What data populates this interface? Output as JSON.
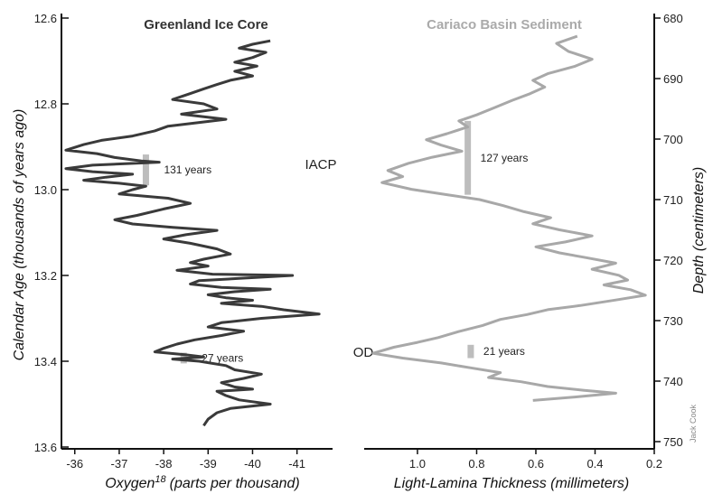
{
  "chart_data": [
    {
      "type": "line",
      "title": "Greenland Ice Core",
      "xlabel": "Oxygen",
      "xlabel_sup": "18",
      "xlabel_units": "(parts per thousand)",
      "ylabel": "Calendar Age (thousands of years ago)",
      "xlim": [
        -35.7,
        -41.8
      ],
      "ylim": [
        12.6,
        13.6
      ],
      "x_ticks": [
        "-36",
        "-37",
        "-38",
        "-39",
        "-40",
        "-41"
      ],
      "x_tick_values": [
        -36,
        -37,
        -38,
        -39,
        -40,
        -41
      ],
      "y_ticks": [
        "12.6",
        "12.8",
        "13.0",
        "13.2",
        "13.4",
        "13.6"
      ],
      "y_tick_values": [
        12.6,
        12.8,
        13.0,
        13.2,
        13.4,
        13.6
      ],
      "line_color": "#3a3a3a",
      "series": [
        {
          "points": [
            [
              -40.4,
              12.653
            ],
            [
              -40.0,
              12.661
            ],
            [
              -39.7,
              12.67
            ],
            [
              -40.3,
              12.68
            ],
            [
              -40.0,
              12.692
            ],
            [
              -39.6,
              12.703
            ],
            [
              -40.1,
              12.712
            ],
            [
              -39.6,
              12.724
            ],
            [
              -40.0,
              12.735
            ],
            [
              -39.5,
              12.745
            ],
            [
              -39.2,
              12.755
            ],
            [
              -38.9,
              12.765
            ],
            [
              -38.6,
              12.776
            ],
            [
              -38.2,
              12.79
            ],
            [
              -38.9,
              12.8
            ],
            [
              -39.2,
              12.812
            ],
            [
              -38.4,
              12.824
            ],
            [
              -39.4,
              12.836
            ],
            [
              -38.1,
              12.852
            ],
            [
              -37.8,
              12.863
            ],
            [
              -37.3,
              12.875
            ],
            [
              -36.6,
              12.885
            ],
            [
              -36.2,
              12.895
            ],
            [
              -35.8,
              12.908
            ],
            [
              -36.5,
              12.916
            ],
            [
              -36.9,
              12.925
            ],
            [
              -37.5,
              12.933
            ],
            [
              -37.9,
              12.936
            ],
            [
              -36.4,
              12.943
            ],
            [
              -35.8,
              12.951
            ],
            [
              -36.4,
              12.958
            ],
            [
              -37.3,
              12.964
            ],
            [
              -36.7,
              12.971
            ],
            [
              -36.2,
              12.978
            ],
            [
              -37.0,
              12.985
            ],
            [
              -37.6,
              12.992
            ],
            [
              -37.3,
              13.0
            ],
            [
              -37.0,
              13.01
            ],
            [
              -38.1,
              13.02
            ],
            [
              -38.6,
              13.032
            ],
            [
              -38.0,
              13.045
            ],
            [
              -37.4,
              13.06
            ],
            [
              -36.9,
              13.07
            ],
            [
              -37.3,
              13.08
            ],
            [
              -38.2,
              13.088
            ],
            [
              -39.2,
              13.095
            ],
            [
              -38.5,
              13.105
            ],
            [
              -38.0,
              13.115
            ],
            [
              -38.6,
              13.125
            ],
            [
              -39.2,
              13.138
            ],
            [
              -39.5,
              13.15
            ],
            [
              -38.9,
              13.162
            ],
            [
              -38.6,
              13.17
            ],
            [
              -39.0,
              13.178
            ],
            [
              -38.3,
              13.188
            ],
            [
              -39.1,
              13.197
            ],
            [
              -40.9,
              13.2
            ],
            [
              -39.7,
              13.207
            ],
            [
              -38.8,
              13.212
            ],
            [
              -38.6,
              13.22
            ],
            [
              -39.3,
              13.228
            ],
            [
              -40.4,
              13.232
            ],
            [
              -39.6,
              13.238
            ],
            [
              -39.0,
              13.245
            ],
            [
              -39.4,
              13.252
            ],
            [
              -40.0,
              13.258
            ],
            [
              -39.3,
              13.265
            ],
            [
              -40.2,
              13.272
            ],
            [
              -40.7,
              13.28
            ],
            [
              -41.5,
              13.29
            ],
            [
              -40.2,
              13.3
            ],
            [
              -39.3,
              13.31
            ],
            [
              -39.0,
              13.32
            ],
            [
              -39.8,
              13.33
            ],
            [
              -39.3,
              13.34
            ],
            [
              -38.7,
              13.35
            ],
            [
              -38.3,
              13.36
            ],
            [
              -38.0,
              13.37
            ],
            [
              -37.8,
              13.378
            ],
            [
              -38.5,
              13.385
            ],
            [
              -38.9,
              13.39
            ],
            [
              -38.2,
              13.395
            ],
            [
              -38.8,
              13.4
            ],
            [
              -39.4,
              13.41
            ],
            [
              -39.6,
              13.42
            ],
            [
              -40.2,
              13.43
            ],
            [
              -39.8,
              13.44
            ],
            [
              -39.3,
              13.45
            ],
            [
              -39.6,
              13.46
            ],
            [
              -40.0,
              13.465
            ],
            [
              -39.2,
              13.47
            ],
            [
              -39.4,
              13.48
            ],
            [
              -39.7,
              13.49
            ],
            [
              -40.4,
              13.5
            ],
            [
              -39.5,
              13.51
            ],
            [
              -39.2,
              13.52
            ],
            [
              -39.0,
              13.535
            ],
            [
              -38.9,
              13.55
            ]
          ]
        }
      ],
      "markers": [
        {
          "label": "131 years",
          "x": -37.6,
          "y_from": 12.918,
          "y_to": 12.99
        },
        {
          "label": "27 years",
          "x": -38.45,
          "y_from": 13.38,
          "y_to": 13.405
        }
      ]
    },
    {
      "type": "line",
      "title": "Cariaco Basin Sediment",
      "xlabel": "Light-Lamina Thickness (millimeters)",
      "ylabel": "Depth (centimeters)",
      "xlim": [
        1.18,
        0.2
      ],
      "ylim": [
        680,
        750
      ],
      "x_ticks": [
        "1.0",
        "0.8",
        "0.6",
        "0.4",
        "0.2"
      ],
      "x_tick_values": [
        1.0,
        0.8,
        0.6,
        0.4,
        0.2
      ],
      "y_ticks": [
        "680",
        "690",
        "700",
        "710",
        "720",
        "730",
        "740",
        "750"
      ],
      "y_tick_values": [
        680,
        690,
        700,
        710,
        720,
        730,
        740,
        750
      ],
      "line_color": "#a8a8a8",
      "series": [
        {
          "points": [
            [
              0.46,
              683.0
            ],
            [
              0.53,
              684.2
            ],
            [
              0.49,
              685.5
            ],
            [
              0.41,
              686.8
            ],
            [
              0.47,
              688.0
            ],
            [
              0.56,
              689.2
            ],
            [
              0.61,
              690.3
            ],
            [
              0.57,
              691.4
            ],
            [
              0.62,
              692.5
            ],
            [
              0.68,
              693.6
            ],
            [
              0.74,
              694.8
            ],
            [
              0.8,
              696.0
            ],
            [
              0.86,
              697.0
            ],
            [
              0.83,
              698.0
            ],
            [
              0.9,
              699.1
            ],
            [
              0.97,
              700.1
            ],
            [
              0.92,
              701.0
            ],
            [
              0.85,
              702.0
            ],
            [
              0.95,
              703.0
            ],
            [
              1.03,
              704.0
            ],
            [
              1.1,
              705.2
            ],
            [
              1.05,
              706.2
            ],
            [
              1.12,
              707.2
            ],
            [
              1.02,
              708.3
            ],
            [
              0.9,
              709.2
            ],
            [
              0.79,
              710.0
            ],
            [
              0.71,
              711.0
            ],
            [
              0.64,
              712.0
            ],
            [
              0.55,
              713.0
            ],
            [
              0.61,
              714.0
            ],
            [
              0.52,
              715.0
            ],
            [
              0.41,
              716.0
            ],
            [
              0.5,
              717.0
            ],
            [
              0.6,
              717.8
            ],
            [
              0.52,
              718.8
            ],
            [
              0.43,
              719.6
            ],
            [
              0.33,
              720.5
            ],
            [
              0.41,
              721.5
            ],
            [
              0.32,
              722.5
            ],
            [
              0.29,
              723.3
            ],
            [
              0.37,
              724.1
            ],
            [
              0.28,
              724.9
            ],
            [
              0.23,
              725.8
            ],
            [
              0.33,
              726.6
            ],
            [
              0.45,
              727.5
            ],
            [
              0.56,
              728.2
            ],
            [
              0.63,
              729.0
            ],
            [
              0.72,
              729.8
            ],
            [
              0.78,
              730.8
            ],
            [
              0.86,
              731.8
            ],
            [
              0.93,
              732.8
            ],
            [
              1.0,
              733.6
            ],
            [
              1.08,
              734.4
            ],
            [
              1.15,
              735.4
            ],
            [
              1.05,
              736.2
            ],
            [
              0.92,
              737.0
            ],
            [
              0.82,
              737.8
            ],
            [
              0.72,
              738.6
            ],
            [
              0.76,
              739.4
            ],
            [
              0.65,
              740.1
            ],
            [
              0.56,
              740.9
            ],
            [
              0.44,
              741.5
            ],
            [
              0.33,
              742.0
            ],
            [
              0.46,
              742.6
            ],
            [
              0.61,
              743.2
            ]
          ]
        }
      ],
      "markers": [
        {
          "label": "127 years",
          "x": 0.83,
          "y_from": 697.0,
          "y_to": 709.2
        },
        {
          "label": "21 years",
          "x": 0.82,
          "y_from": 734.0,
          "y_to": 736.2
        }
      ]
    }
  ],
  "events": [
    "IACP",
    "OD"
  ],
  "credit": "Jack Cook"
}
